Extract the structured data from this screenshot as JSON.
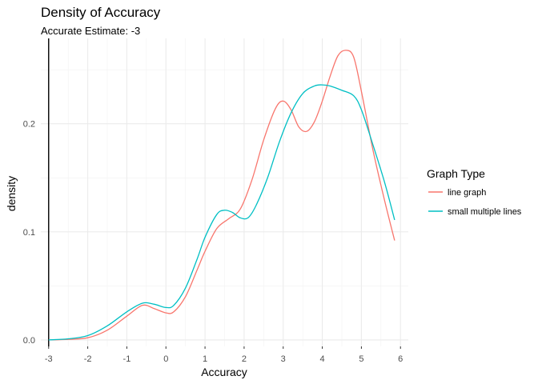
{
  "chart_data": {
    "type": "line",
    "title": "Density of Accuracy",
    "subtitle": "Accurate Estimate: -3",
    "xlabel": "Accuracy",
    "ylabel": "density",
    "xlim": [
      -3.2,
      6.2
    ],
    "ylim": [
      -0.006,
      0.279
    ],
    "x_ticks": [
      -3,
      -2,
      -1,
      0,
      1,
      2,
      3,
      4,
      5,
      6
    ],
    "y_ticks": [
      0.0,
      0.1,
      0.2
    ],
    "y_tick_labels": [
      "0.0",
      "0.1",
      "0.2"
    ],
    "grid": true,
    "reference_line_x": -3,
    "legend": {
      "title": "Graph Type",
      "position": "right"
    },
    "series": [
      {
        "name": "line graph",
        "color": "#F8766D",
        "x": [
          -3.0,
          -2.5,
          -2.0,
          -1.5,
          -1.0,
          -0.6,
          -0.3,
          0.0,
          0.2,
          0.5,
          0.8,
          1.0,
          1.3,
          1.6,
          1.9,
          2.2,
          2.5,
          2.8,
          3.0,
          3.2,
          3.4,
          3.6,
          3.8,
          4.0,
          4.2,
          4.4,
          4.6,
          4.8,
          5.0,
          5.3,
          5.6,
          5.85
        ],
        "y": [
          0.0,
          0.0005,
          0.002,
          0.009,
          0.022,
          0.032,
          0.029,
          0.025,
          0.026,
          0.04,
          0.065,
          0.082,
          0.103,
          0.112,
          0.121,
          0.148,
          0.185,
          0.214,
          0.221,
          0.213,
          0.197,
          0.193,
          0.202,
          0.221,
          0.244,
          0.263,
          0.268,
          0.262,
          0.23,
          0.175,
          0.128,
          0.092
        ]
      },
      {
        "name": "small multiple lines",
        "color": "#00BFC4",
        "x": [
          -3.0,
          -2.5,
          -2.0,
          -1.5,
          -1.0,
          -0.6,
          -0.3,
          0.0,
          0.2,
          0.5,
          0.8,
          1.0,
          1.3,
          1.5,
          1.7,
          1.9,
          2.1,
          2.3,
          2.6,
          2.9,
          3.2,
          3.5,
          3.8,
          4.0,
          4.2,
          4.5,
          4.8,
          5.0,
          5.3,
          5.6,
          5.85
        ],
        "y": [
          0.0,
          0.001,
          0.004,
          0.013,
          0.026,
          0.034,
          0.033,
          0.03,
          0.032,
          0.048,
          0.075,
          0.095,
          0.116,
          0.12,
          0.118,
          0.113,
          0.113,
          0.124,
          0.15,
          0.183,
          0.21,
          0.228,
          0.235,
          0.236,
          0.235,
          0.231,
          0.226,
          0.213,
          0.18,
          0.145,
          0.111
        ]
      }
    ]
  }
}
